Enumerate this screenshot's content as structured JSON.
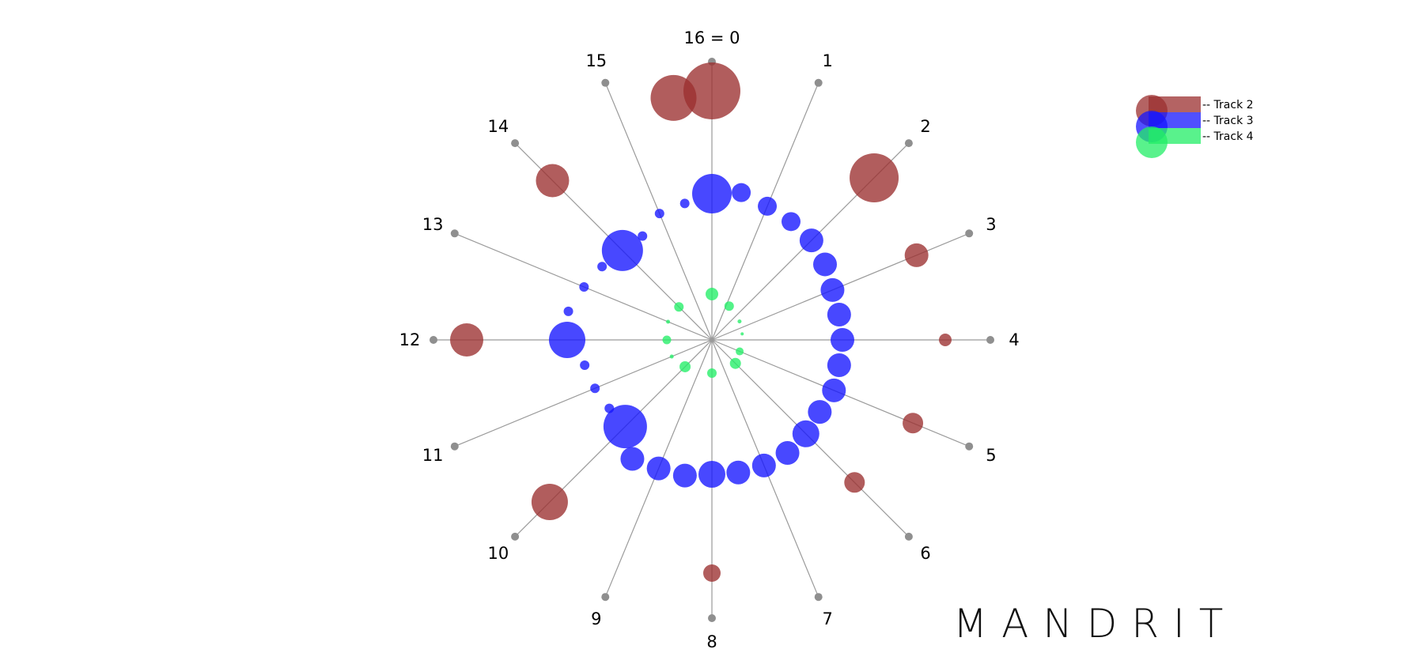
{
  "brand": "MANDRIT",
  "chart_data": {
    "type": "scatter",
    "subtype": "radial-rhythm",
    "steps": 16,
    "spoke_labels": [
      "16 = 0",
      "1",
      "2",
      "3",
      "4",
      "5",
      "6",
      "7",
      "8",
      "9",
      "10",
      "11",
      "12",
      "13",
      "14",
      "15"
    ],
    "grid": false,
    "legend_position": "top-right",
    "series": [
      {
        "name": "-- Track 2",
        "color": "#9b2f2f",
        "points": [
          {
            "step": 0,
            "radius": 315,
            "size": 72
          },
          {
            "step": 15.6,
            "radius": 310,
            "size": 58
          },
          {
            "step": 2,
            "radius": 290,
            "size": 62
          },
          {
            "step": 3,
            "radius": 280,
            "size": 30
          },
          {
            "step": 4,
            "radius": 295,
            "size": 16
          },
          {
            "step": 5,
            "radius": 275,
            "size": 26
          },
          {
            "step": 6,
            "radius": 255,
            "size": 26
          },
          {
            "step": 8,
            "radius": 295,
            "size": 22
          },
          {
            "step": 10,
            "radius": 290,
            "size": 46
          },
          {
            "step": 12,
            "radius": 310,
            "size": 42
          },
          {
            "step": 14,
            "radius": 285,
            "size": 42
          }
        ]
      },
      {
        "name": "-- Track 3",
        "color": "#1515ff",
        "points": [
          {
            "step": 0,
            "radius": 185,
            "size": 50
          },
          {
            "step": 0.5,
            "radius": 190,
            "size": 24
          },
          {
            "step": 1,
            "radius": 183,
            "size": 24
          },
          {
            "step": 1.5,
            "radius": 180,
            "size": 24
          },
          {
            "step": 2,
            "radius": 178,
            "size": 30
          },
          {
            "step": 2.5,
            "radius": 172,
            "size": 30
          },
          {
            "step": 3,
            "radius": 165,
            "size": 30
          },
          {
            "step": 3.5,
            "radius": 164,
            "size": 30
          },
          {
            "step": 4,
            "radius": 165,
            "size": 30
          },
          {
            "step": 4.5,
            "radius": 164,
            "size": 30
          },
          {
            "step": 5,
            "radius": 167,
            "size": 30
          },
          {
            "step": 5.5,
            "radius": 164,
            "size": 30
          },
          {
            "step": 6,
            "radius": 168,
            "size": 34
          },
          {
            "step": 6.5,
            "radius": 172,
            "size": 30
          },
          {
            "step": 7,
            "radius": 172,
            "size": 30
          },
          {
            "step": 7.5,
            "radius": 171,
            "size": 30
          },
          {
            "step": 8,
            "radius": 170,
            "size": 34
          },
          {
            "step": 8.5,
            "radius": 175,
            "size": 30
          },
          {
            "step": 9,
            "radius": 176,
            "size": 30
          },
          {
            "step": 9.5,
            "radius": 181,
            "size": 30
          },
          {
            "step": 10,
            "radius": 155,
            "size": 55
          },
          {
            "step": 10.5,
            "radius": 156,
            "size": 12
          },
          {
            "step": 11,
            "radius": 160,
            "size": 12
          },
          {
            "step": 11.5,
            "radius": 164,
            "size": 12
          },
          {
            "step": 12,
            "radius": 183,
            "size": 46
          },
          {
            "step": 12.5,
            "radius": 185,
            "size": 12
          },
          {
            "step": 13,
            "radius": 175,
            "size": 12
          },
          {
            "step": 13.5,
            "radius": 167,
            "size": 12
          },
          {
            "step": 14,
            "radius": 160,
            "size": 52
          },
          {
            "step": 14.5,
            "radius": 158,
            "size": 12
          },
          {
            "step": 15,
            "radius": 173,
            "size": 12
          },
          {
            "step": 15.5,
            "radius": 176,
            "size": 12
          }
        ]
      },
      {
        "name": "-- Track 4",
        "color": "#22ee66",
        "points": [
          {
            "step": 0,
            "radius": 58,
            "size": 16
          },
          {
            "step": 1.2,
            "radius": 48,
            "size": 12
          },
          {
            "step": 2.5,
            "radius": 42,
            "size": 5
          },
          {
            "step": 3.5,
            "radius": 39,
            "size": 4
          },
          {
            "step": 5,
            "radius": 38,
            "size": 10
          },
          {
            "step": 6,
            "radius": 42,
            "size": 14
          },
          {
            "step": 8,
            "radius": 42,
            "size": 12
          },
          {
            "step": 10,
            "radius": 48,
            "size": 14
          },
          {
            "step": 11,
            "radius": 55,
            "size": 5
          },
          {
            "step": 12,
            "radius": 57,
            "size": 11
          },
          {
            "step": 13,
            "radius": 60,
            "size": 5
          },
          {
            "step": 14,
            "radius": 59,
            "size": 12
          }
        ]
      }
    ]
  }
}
